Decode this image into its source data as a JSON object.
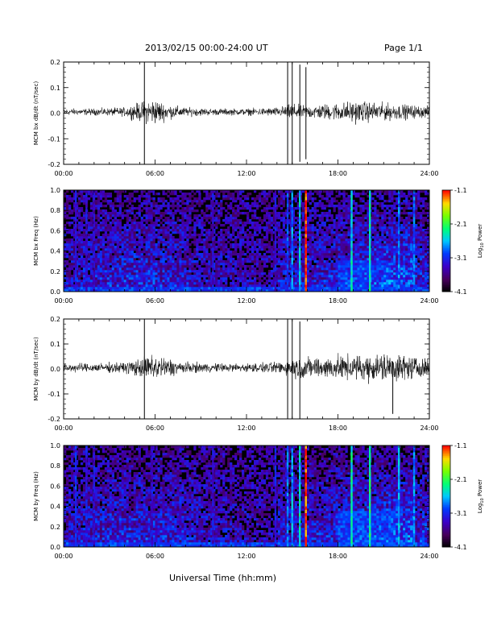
{
  "header": {
    "title": "2013/02/15  00:00-24:00 UT",
    "page": "Page 1/1"
  },
  "footer": {
    "xlabel": "Universal Time (hh:mm)"
  },
  "chart_data": [
    {
      "type": "line",
      "ylabel": "MCM bx dB/dt (nT/sec)",
      "ylim": [
        -0.2,
        0.2
      ],
      "yticks": [
        "-0.2",
        "-0.1",
        "0.0",
        "0.1",
        "0.2"
      ],
      "xlim": [
        0,
        24
      ],
      "xticks": [
        "00:00",
        "06:00",
        "12:00",
        "18:00",
        "24:00"
      ],
      "x_hours": [
        0,
        2,
        4,
        5.3,
        6,
        6.8,
        8,
        10,
        12,
        14,
        14.7,
        15,
        15.5,
        16,
        17,
        18,
        19,
        20,
        21,
        22,
        23,
        24
      ],
      "amplitude": [
        0.015,
        0.015,
        0.02,
        0.05,
        0.06,
        0.035,
        0.02,
        0.015,
        0.015,
        0.02,
        0.03,
        0.04,
        0.03,
        0.03,
        0.035,
        0.04,
        0.05,
        0.045,
        0.04,
        0.035,
        0.03,
        0.025
      ],
      "spikes": [
        {
          "x": 5.3,
          "min": -0.2,
          "max": 0.2
        },
        {
          "x": 14.7,
          "min": -0.2,
          "max": 0.2
        },
        {
          "x": 15.0,
          "min": -0.2,
          "max": 0.2
        },
        {
          "x": 15.5,
          "min": -0.19,
          "max": 0.19
        },
        {
          "x": 15.9,
          "min": -0.18,
          "max": 0.18
        }
      ]
    },
    {
      "type": "heatmap",
      "ylabel": "MCM bx Freq (Hz)",
      "ylim": [
        0,
        1
      ],
      "yticks": [
        "0.0",
        "0.2",
        "0.4",
        "0.6",
        "0.8",
        "1.0"
      ],
      "xlim": [
        0,
        24
      ],
      "xticks": [
        "00:00",
        "06:00",
        "12:00",
        "18:00",
        "24:00"
      ],
      "colorbar": {
        "label": "Log10 Power",
        "min": -4.1,
        "max": -1.1,
        "ticks": [
          "-1.1",
          "-2.1",
          "-3.1",
          "-4.1"
        ]
      },
      "bright_lines": [
        {
          "x": 0.8,
          "power": -3.2
        },
        {
          "x": 1.5,
          "power": -3.3
        },
        {
          "x": 2.0,
          "power": -3.4
        },
        {
          "x": 9.8,
          "power": -3.3
        },
        {
          "x": 13.9,
          "power": -3.3
        },
        {
          "x": 14.7,
          "power": -3.0
        },
        {
          "x": 15.0,
          "power": -2.8
        },
        {
          "x": 15.5,
          "power": -2.6
        },
        {
          "x": 15.9,
          "power": -1.2
        },
        {
          "x": 18.9,
          "power": -2.5
        },
        {
          "x": 20.1,
          "power": -2.4
        },
        {
          "x": 22.0,
          "power": -2.8
        },
        {
          "x": 23.0,
          "power": -2.9
        }
      ],
      "enhanced_region": {
        "x_start": 18.0,
        "x_end": 21.5,
        "f_max": 0.3,
        "power": -3.0
      }
    },
    {
      "type": "line",
      "ylabel": "MCM by dB/dt (nT/sec)",
      "ylim": [
        -0.2,
        0.2
      ],
      "yticks": [
        "-0.2",
        "-0.1",
        "0.0",
        "0.1",
        "0.2"
      ],
      "xlim": [
        0,
        24
      ],
      "xticks": [
        "00:00",
        "06:00",
        "12:00",
        "18:00",
        "24:00"
      ],
      "x_hours": [
        0,
        2,
        4,
        5.3,
        6,
        6.8,
        8,
        10,
        12,
        14,
        14.7,
        15,
        15.5,
        16,
        17,
        18,
        19,
        20,
        21,
        22,
        23,
        24
      ],
      "amplitude": [
        0.02,
        0.02,
        0.025,
        0.05,
        0.06,
        0.045,
        0.025,
        0.02,
        0.02,
        0.025,
        0.04,
        0.045,
        0.05,
        0.05,
        0.05,
        0.055,
        0.06,
        0.06,
        0.07,
        0.065,
        0.05,
        0.04
      ],
      "spikes": [
        {
          "x": 5.3,
          "min": -0.2,
          "max": 0.2
        },
        {
          "x": 14.7,
          "min": -0.2,
          "max": 0.2
        },
        {
          "x": 15.0,
          "min": -0.2,
          "max": 0.2
        },
        {
          "x": 15.5,
          "min": -0.2,
          "max": 0.19
        },
        {
          "x": 21.6,
          "min": -0.18,
          "max": 0.03
        }
      ]
    },
    {
      "type": "heatmap",
      "ylabel": "MCM by Freq (Hz)",
      "ylim": [
        0,
        1
      ],
      "yticks": [
        "0.0",
        "0.2",
        "0.4",
        "0.6",
        "0.8",
        "1.0"
      ],
      "xlim": [
        0,
        24
      ],
      "xticks": [
        "00:00",
        "06:00",
        "12:00",
        "18:00",
        "24:00"
      ],
      "colorbar": {
        "label": "Log10 Power",
        "min": -4.1,
        "max": -1.1,
        "ticks": [
          "-1.1",
          "-2.1",
          "-3.1",
          "-4.1"
        ]
      },
      "bright_lines": [
        {
          "x": 0.8,
          "power": -3.1
        },
        {
          "x": 1.5,
          "power": -3.2
        },
        {
          "x": 2.0,
          "power": -3.3
        },
        {
          "x": 5.8,
          "power": -3.3
        },
        {
          "x": 9.8,
          "power": -3.3
        },
        {
          "x": 13.9,
          "power": -3.2
        },
        {
          "x": 14.7,
          "power": -2.9
        },
        {
          "x": 15.0,
          "power": -2.7
        },
        {
          "x": 15.5,
          "power": -2.5
        },
        {
          "x": 15.9,
          "power": -1.2
        },
        {
          "x": 18.9,
          "power": -2.4
        },
        {
          "x": 20.1,
          "power": -2.3
        },
        {
          "x": 22.0,
          "power": -2.7
        },
        {
          "x": 23.0,
          "power": -2.8
        }
      ],
      "enhanced_region": {
        "x_start": 18.0,
        "x_end": 21.8,
        "f_max": 0.35,
        "power": -2.9
      }
    }
  ]
}
